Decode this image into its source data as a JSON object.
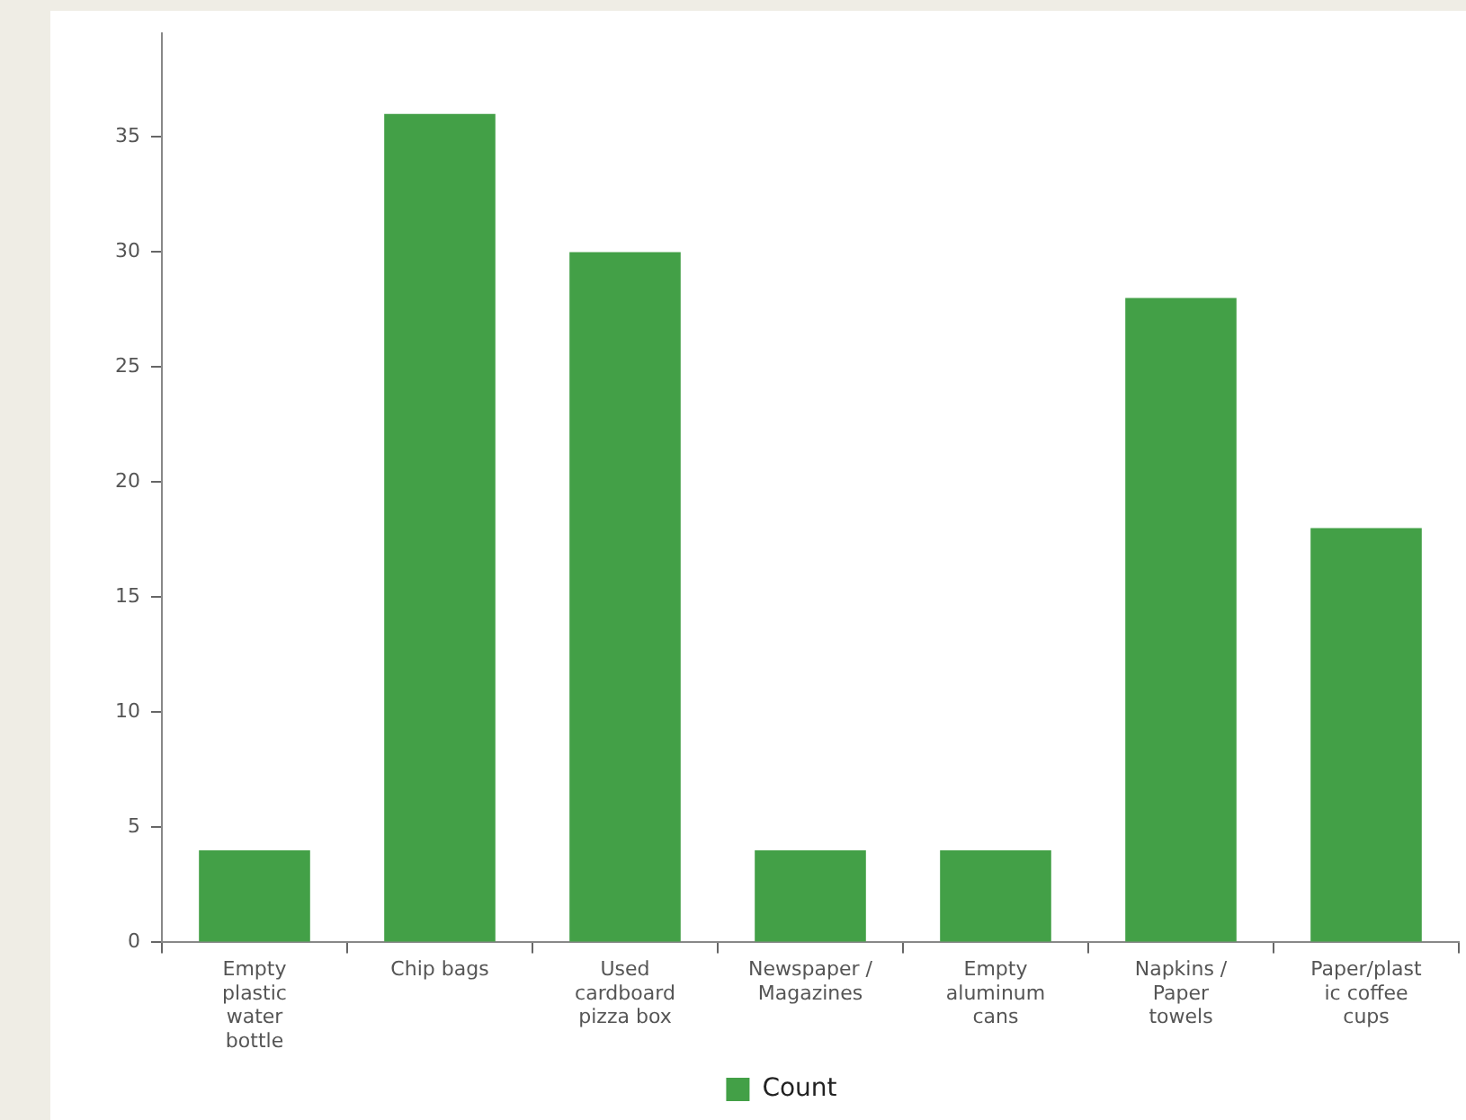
{
  "chart_data": {
    "type": "bar",
    "categories": [
      "Empty plastic water bottle",
      "Chip bags",
      "Used cardboard pizza box",
      "Newspaper / Magazines",
      "Empty aluminum cans",
      "Napkins / Paper towels",
      "Paper/plastic coffee cups"
    ],
    "series": [
      {
        "name": "Count",
        "color": "#43a047",
        "values": [
          4,
          36,
          30,
          4,
          4,
          28,
          18
        ]
      }
    ],
    "ylim": [
      0,
      39.5
    ],
    "yticks": [
      0,
      5,
      10,
      15,
      20,
      25,
      30,
      35
    ],
    "grid": false,
    "legend": "bottom"
  }
}
